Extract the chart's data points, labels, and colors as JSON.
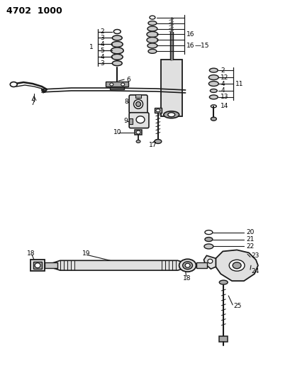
{
  "title": "4702  1000",
  "bg": "#ffffff",
  "lc": "#1a1a1a",
  "gray1": "#c8c8c8",
  "gray2": "#a8a8a8",
  "gray3": "#e0e0e0",
  "fig_width": 4.09,
  "fig_height": 5.33,
  "dpi": 100
}
